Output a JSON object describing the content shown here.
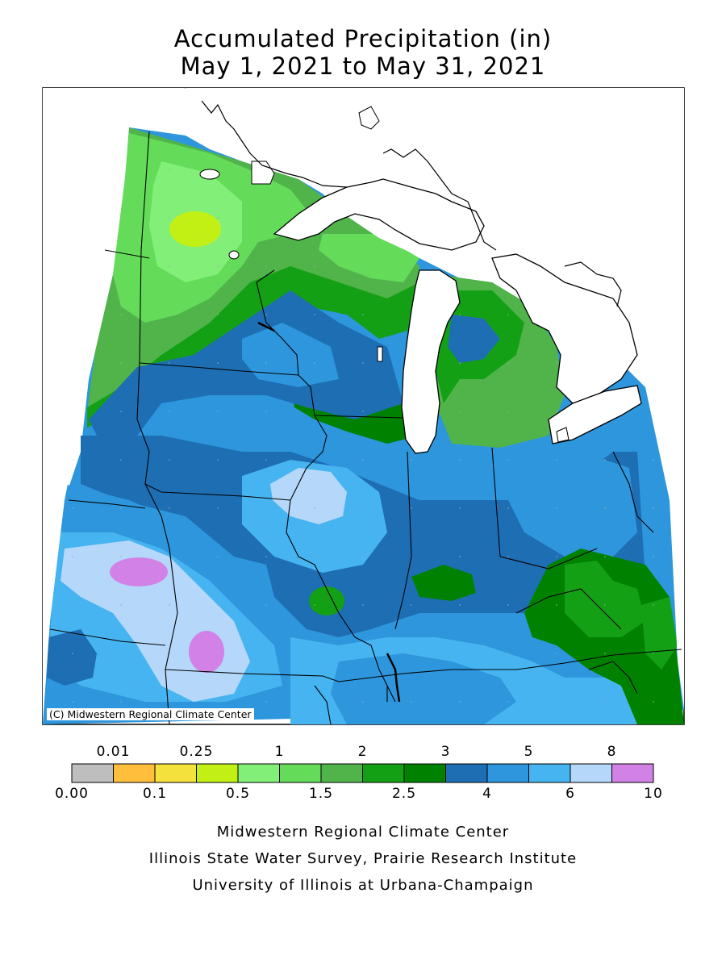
{
  "title": {
    "line1": "Accumulated Precipitation (in)",
    "line2": "May 1, 2021 to May 31, 2021"
  },
  "map": {
    "copyright": "(C) Midwestern Regional Climate Center"
  },
  "legend": {
    "bins": [
      {
        "color": "#bebebe"
      },
      {
        "color": "#ffbe3c"
      },
      {
        "color": "#f5e13c"
      },
      {
        "color": "#c3f014"
      },
      {
        "color": "#82f078"
      },
      {
        "color": "#64dc5a"
      },
      {
        "color": "#50b44b"
      },
      {
        "color": "#14a014"
      },
      {
        "color": "#008200"
      },
      {
        "color": "#1e6eb4"
      },
      {
        "color": "#2d96dc"
      },
      {
        "color": "#46b4f0"
      },
      {
        "color": "#b4d7fa"
      },
      {
        "color": "#d282e6"
      }
    ],
    "top_labels": [
      "0.01",
      "0.25",
      "1",
      "2",
      "3",
      "5",
      "8"
    ],
    "bottom_labels": [
      "0.00",
      "0.1",
      "0.5",
      "1.5",
      "2.5",
      "4",
      "6",
      "10"
    ]
  },
  "credits": {
    "line1": "Midwestern Regional Climate Center",
    "line2": "Illinois State Water Survey, Prairie Research Institute",
    "line3": "University of Illinois at Urbana-Champaign"
  }
}
